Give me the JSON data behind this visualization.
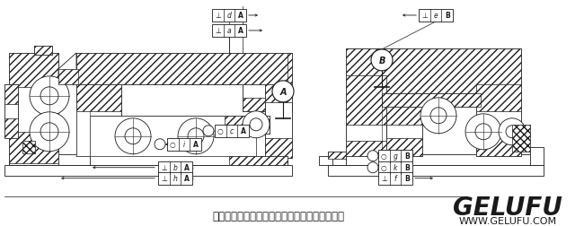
{
  "title": "单级谐波传动组件安装时的位置公差要求示意图",
  "brand": "GELUFU",
  "website": "WWW.GELUFU.COM",
  "bg_color": "#ffffff",
  "line_color": "#1a1a1a",
  "title_fontsize": 8.5,
  "brand_fontsize": 20,
  "web_fontsize": 8
}
